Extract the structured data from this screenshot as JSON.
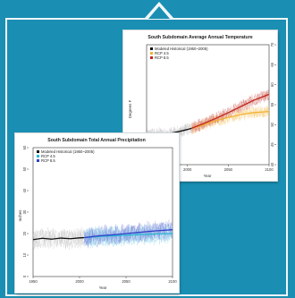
{
  "chart_data": [
    {
      "type": "line",
      "title": "South Subdomain Average Annual Temperature",
      "xlabel": "Year",
      "ylabel": "Degrees F",
      "xlim": [
        1950,
        2100
      ],
      "ylim": [
        40,
        70
      ],
      "xticks": [
        "2000",
        "2050",
        "2100"
      ],
      "yticks": [
        "40",
        "45",
        "50",
        "55",
        "60",
        "65",
        "70"
      ],
      "legend": {
        "placement": "top-left",
        "entries": [
          "Modeled Historical (1950~2005)",
          "RCP 4.5",
          "RCP 8.5"
        ]
      },
      "series": [
        {
          "name": "Modeled Historical (1950~2005)",
          "color": "#111111",
          "x": [
            1950,
            1960,
            1970,
            1980,
            1990,
            2000,
            2005
          ],
          "y": [
            47.5,
            47.6,
            47.6,
            47.9,
            48.3,
            48.8,
            49.1
          ]
        },
        {
          "name": "RCP 4.5",
          "color": "#f2b233",
          "x": [
            2005,
            2020,
            2035,
            2050,
            2065,
            2080,
            2100
          ],
          "y": [
            49.1,
            50.0,
            51.0,
            51.8,
            52.5,
            53.0,
            53.3
          ]
        },
        {
          "name": "RCP 8.5",
          "color": "#c0281c",
          "x": [
            2005,
            2020,
            2035,
            2050,
            2065,
            2080,
            2100
          ],
          "y": [
            49.1,
            50.3,
            51.6,
            53.0,
            54.5,
            56.0,
            57.6
          ]
        }
      ]
    },
    {
      "type": "line",
      "title": "South Subdomain Total Annual Precipitation",
      "xlabel": "Year",
      "ylabel": "Inches",
      "xlim": [
        1950,
        2100
      ],
      "ylim": [
        0,
        60
      ],
      "xticks": [
        "1950",
        "2000",
        "2050",
        "2100"
      ],
      "yticks": [
        "0",
        "10",
        "20",
        "30",
        "40",
        "50",
        "60"
      ],
      "legend": {
        "placement": "top-left",
        "entries": [
          "Modeled Historical (1950~2005)",
          "RCP 4.5",
          "RCP 8.5"
        ]
      },
      "series": [
        {
          "name": "Modeled Historical (1950~2005)",
          "color": "#111111",
          "x": [
            1950,
            1960,
            1970,
            1980,
            1990,
            2000,
            2005
          ],
          "y": [
            17.2,
            17.8,
            17.4,
            17.9,
            17.6,
            18.0,
            18.1
          ]
        },
        {
          "name": "RCP 4.5",
          "color": "#2bb7d6",
          "x": [
            2005,
            2020,
            2035,
            2050,
            2065,
            2080,
            2100
          ],
          "y": [
            18.1,
            18.6,
            18.9,
            19.2,
            19.6,
            19.8,
            20.0
          ]
        },
        {
          "name": "RCP 8.5",
          "color": "#3040c8",
          "x": [
            2005,
            2020,
            2035,
            2050,
            2065,
            2080,
            2100
          ],
          "y": [
            18.1,
            18.9,
            19.4,
            20.0,
            20.6,
            21.2,
            21.8
          ]
        }
      ]
    }
  ]
}
